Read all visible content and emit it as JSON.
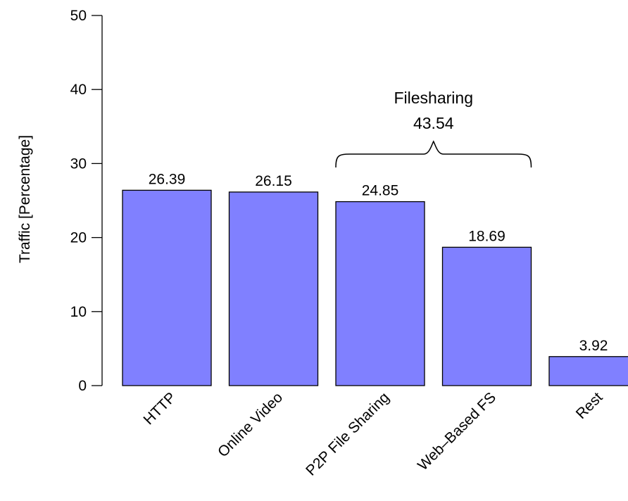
{
  "chart_data": {
    "type": "bar",
    "ylabel": "Traffic [Percentage]",
    "ylim": [
      0,
      50
    ],
    "yticks": [
      0,
      10,
      20,
      30,
      40,
      50
    ],
    "categories": [
      "HTTP",
      "Online Video",
      "P2P File Sharing",
      "Web–Based FS",
      "Rest"
    ],
    "values": [
      26.39,
      26.15,
      24.85,
      18.69,
      3.92
    ],
    "value_labels": [
      "26.39",
      "26.15",
      "24.85",
      "18.69",
      "3.92"
    ],
    "bar_color": "#8080ff",
    "annotation": {
      "title": "Filesharing",
      "value": "43.54",
      "spans_categories": [
        "P2P File Sharing",
        "Web–Based FS"
      ]
    }
  }
}
